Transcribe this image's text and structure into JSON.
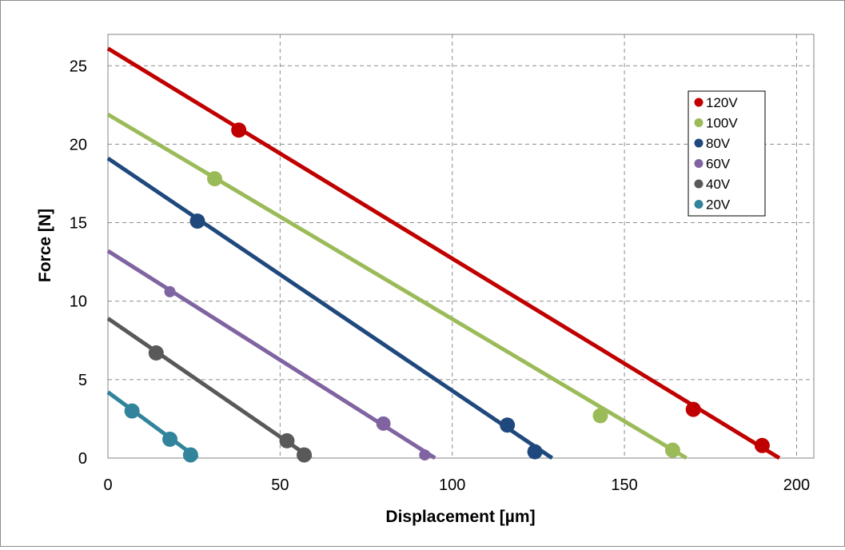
{
  "chart_data": {
    "type": "line",
    "title": "",
    "xlabel": "Displacement [µm]",
    "ylabel": "Force [N]",
    "xlim": [
      0,
      205
    ],
    "ylim": [
      0,
      27
    ],
    "xticks": [
      0,
      50,
      100,
      150,
      200
    ],
    "yticks": [
      0,
      5,
      10,
      15,
      20,
      25
    ],
    "grid": true,
    "legend_position": "top-right",
    "series": [
      {
        "name": "120V",
        "color": "#c00000",
        "line": [
          [
            0,
            26.1
          ],
          [
            195,
            0
          ]
        ],
        "points": [
          [
            38,
            20.9
          ],
          [
            170,
            3.1
          ],
          [
            190,
            0.8
          ]
        ]
      },
      {
        "name": "100V",
        "color": "#9bbb59",
        "line": [
          [
            0,
            21.9
          ],
          [
            168,
            0
          ]
        ],
        "points": [
          [
            31,
            17.8
          ],
          [
            143,
            2.7
          ],
          [
            164,
            0.5
          ]
        ]
      },
      {
        "name": "80V",
        "color": "#1f497d",
        "line": [
          [
            0,
            19.1
          ],
          [
            129,
            0
          ]
        ],
        "points": [
          [
            26,
            15.1
          ],
          [
            116,
            2.1
          ],
          [
            124,
            0.4
          ]
        ]
      },
      {
        "name": "60V",
        "color": "#8064a2",
        "line": [
          [
            0,
            13.2
          ],
          [
            95,
            0
          ]
        ],
        "points": [
          [
            18,
            10.6
          ],
          [
            80,
            2.2
          ],
          [
            92,
            0.2
          ]
        ]
      },
      {
        "name": "40V",
        "color": "#595959",
        "line": [
          [
            0,
            8.9
          ],
          [
            59,
            0
          ]
        ],
        "points": [
          [
            14,
            6.7
          ],
          [
            52,
            1.1
          ],
          [
            57,
            0.2
          ]
        ]
      },
      {
        "name": "20V",
        "color": "#31849b",
        "line": [
          [
            0,
            4.2
          ],
          [
            26,
            0
          ]
        ],
        "points": [
          [
            7,
            3.0
          ],
          [
            18,
            1.2
          ],
          [
            24,
            0.2
          ]
        ]
      }
    ]
  }
}
